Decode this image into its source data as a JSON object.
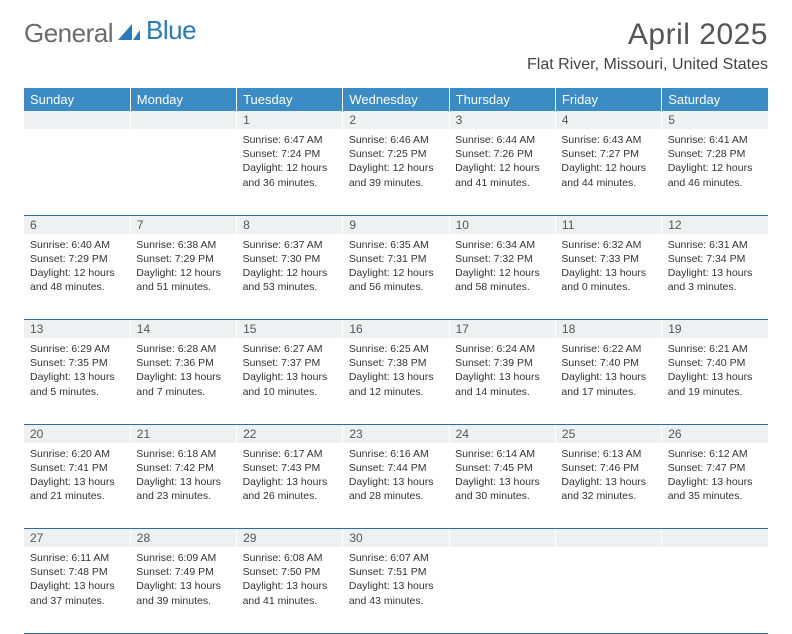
{
  "logo": {
    "word1": "General",
    "word2": "Blue"
  },
  "title": "April 2025",
  "location": "Flat River, Missouri, United States",
  "dayHeaders": [
    "Sunday",
    "Monday",
    "Tuesday",
    "Wednesday",
    "Thursday",
    "Friday",
    "Saturday"
  ],
  "colors": {
    "header_bg": "#3b8bc4",
    "header_text": "#ffffff",
    "daynum_bg": "#eef0f2",
    "row_divider": "#2b6fa0",
    "logo_gray": "#6b6b6b",
    "logo_blue": "#2b7bbc"
  },
  "weeks": [
    {
      "nums": [
        "",
        "",
        "1",
        "2",
        "3",
        "4",
        "5"
      ],
      "cells": [
        null,
        null,
        {
          "sr": "Sunrise: 6:47 AM",
          "ss": "Sunset: 7:24 PM",
          "dl1": "Daylight: 12 hours",
          "dl2": "and 36 minutes."
        },
        {
          "sr": "Sunrise: 6:46 AM",
          "ss": "Sunset: 7:25 PM",
          "dl1": "Daylight: 12 hours",
          "dl2": "and 39 minutes."
        },
        {
          "sr": "Sunrise: 6:44 AM",
          "ss": "Sunset: 7:26 PM",
          "dl1": "Daylight: 12 hours",
          "dl2": "and 41 minutes."
        },
        {
          "sr": "Sunrise: 6:43 AM",
          "ss": "Sunset: 7:27 PM",
          "dl1": "Daylight: 12 hours",
          "dl2": "and 44 minutes."
        },
        {
          "sr": "Sunrise: 6:41 AM",
          "ss": "Sunset: 7:28 PM",
          "dl1": "Daylight: 12 hours",
          "dl2": "and 46 minutes."
        }
      ]
    },
    {
      "nums": [
        "6",
        "7",
        "8",
        "9",
        "10",
        "11",
        "12"
      ],
      "cells": [
        {
          "sr": "Sunrise: 6:40 AM",
          "ss": "Sunset: 7:29 PM",
          "dl1": "Daylight: 12 hours",
          "dl2": "and 48 minutes."
        },
        {
          "sr": "Sunrise: 6:38 AM",
          "ss": "Sunset: 7:29 PM",
          "dl1": "Daylight: 12 hours",
          "dl2": "and 51 minutes."
        },
        {
          "sr": "Sunrise: 6:37 AM",
          "ss": "Sunset: 7:30 PM",
          "dl1": "Daylight: 12 hours",
          "dl2": "and 53 minutes."
        },
        {
          "sr": "Sunrise: 6:35 AM",
          "ss": "Sunset: 7:31 PM",
          "dl1": "Daylight: 12 hours",
          "dl2": "and 56 minutes."
        },
        {
          "sr": "Sunrise: 6:34 AM",
          "ss": "Sunset: 7:32 PM",
          "dl1": "Daylight: 12 hours",
          "dl2": "and 58 minutes."
        },
        {
          "sr": "Sunrise: 6:32 AM",
          "ss": "Sunset: 7:33 PM",
          "dl1": "Daylight: 13 hours",
          "dl2": "and 0 minutes."
        },
        {
          "sr": "Sunrise: 6:31 AM",
          "ss": "Sunset: 7:34 PM",
          "dl1": "Daylight: 13 hours",
          "dl2": "and 3 minutes."
        }
      ]
    },
    {
      "nums": [
        "13",
        "14",
        "15",
        "16",
        "17",
        "18",
        "19"
      ],
      "cells": [
        {
          "sr": "Sunrise: 6:29 AM",
          "ss": "Sunset: 7:35 PM",
          "dl1": "Daylight: 13 hours",
          "dl2": "and 5 minutes."
        },
        {
          "sr": "Sunrise: 6:28 AM",
          "ss": "Sunset: 7:36 PM",
          "dl1": "Daylight: 13 hours",
          "dl2": "and 7 minutes."
        },
        {
          "sr": "Sunrise: 6:27 AM",
          "ss": "Sunset: 7:37 PM",
          "dl1": "Daylight: 13 hours",
          "dl2": "and 10 minutes."
        },
        {
          "sr": "Sunrise: 6:25 AM",
          "ss": "Sunset: 7:38 PM",
          "dl1": "Daylight: 13 hours",
          "dl2": "and 12 minutes."
        },
        {
          "sr": "Sunrise: 6:24 AM",
          "ss": "Sunset: 7:39 PM",
          "dl1": "Daylight: 13 hours",
          "dl2": "and 14 minutes."
        },
        {
          "sr": "Sunrise: 6:22 AM",
          "ss": "Sunset: 7:40 PM",
          "dl1": "Daylight: 13 hours",
          "dl2": "and 17 minutes."
        },
        {
          "sr": "Sunrise: 6:21 AM",
          "ss": "Sunset: 7:40 PM",
          "dl1": "Daylight: 13 hours",
          "dl2": "and 19 minutes."
        }
      ]
    },
    {
      "nums": [
        "20",
        "21",
        "22",
        "23",
        "24",
        "25",
        "26"
      ],
      "cells": [
        {
          "sr": "Sunrise: 6:20 AM",
          "ss": "Sunset: 7:41 PM",
          "dl1": "Daylight: 13 hours",
          "dl2": "and 21 minutes."
        },
        {
          "sr": "Sunrise: 6:18 AM",
          "ss": "Sunset: 7:42 PM",
          "dl1": "Daylight: 13 hours",
          "dl2": "and 23 minutes."
        },
        {
          "sr": "Sunrise: 6:17 AM",
          "ss": "Sunset: 7:43 PM",
          "dl1": "Daylight: 13 hours",
          "dl2": "and 26 minutes."
        },
        {
          "sr": "Sunrise: 6:16 AM",
          "ss": "Sunset: 7:44 PM",
          "dl1": "Daylight: 13 hours",
          "dl2": "and 28 minutes."
        },
        {
          "sr": "Sunrise: 6:14 AM",
          "ss": "Sunset: 7:45 PM",
          "dl1": "Daylight: 13 hours",
          "dl2": "and 30 minutes."
        },
        {
          "sr": "Sunrise: 6:13 AM",
          "ss": "Sunset: 7:46 PM",
          "dl1": "Daylight: 13 hours",
          "dl2": "and 32 minutes."
        },
        {
          "sr": "Sunrise: 6:12 AM",
          "ss": "Sunset: 7:47 PM",
          "dl1": "Daylight: 13 hours",
          "dl2": "and 35 minutes."
        }
      ]
    },
    {
      "nums": [
        "27",
        "28",
        "29",
        "30",
        "",
        "",
        ""
      ],
      "cells": [
        {
          "sr": "Sunrise: 6:11 AM",
          "ss": "Sunset: 7:48 PM",
          "dl1": "Daylight: 13 hours",
          "dl2": "and 37 minutes."
        },
        {
          "sr": "Sunrise: 6:09 AM",
          "ss": "Sunset: 7:49 PM",
          "dl1": "Daylight: 13 hours",
          "dl2": "and 39 minutes."
        },
        {
          "sr": "Sunrise: 6:08 AM",
          "ss": "Sunset: 7:50 PM",
          "dl1": "Daylight: 13 hours",
          "dl2": "and 41 minutes."
        },
        {
          "sr": "Sunrise: 6:07 AM",
          "ss": "Sunset: 7:51 PM",
          "dl1": "Daylight: 13 hours",
          "dl2": "and 43 minutes."
        },
        null,
        null,
        null
      ]
    }
  ]
}
